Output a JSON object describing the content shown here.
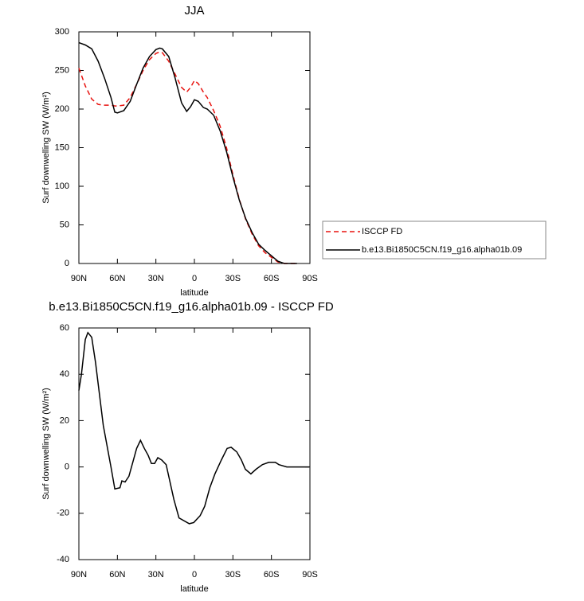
{
  "chart_data": [
    {
      "type": "line",
      "title": "JJA",
      "xlabel": "latitude",
      "ylabel": "Surf downwelling SW (W/m²)",
      "xlim": [
        90,
        -90
      ],
      "xticks": [
        {
          "value": 90,
          "label": "90N"
        },
        {
          "value": 60,
          "label": "60N"
        },
        {
          "value": 30,
          "label": "30N"
        },
        0,
        {
          "value": -30,
          "label": "30S"
        },
        {
          "value": -60,
          "label": "60S"
        },
        {
          "value": -90,
          "label": "90S"
        }
      ],
      "ylim": [
        0,
        300
      ],
      "yticks": [
        0,
        50,
        100,
        150,
        200,
        250,
        300
      ],
      "x": [
        90,
        85,
        80,
        75,
        70,
        65,
        62,
        60,
        55,
        50,
        45,
        40,
        35,
        30,
        27,
        25,
        20,
        15,
        10,
        6,
        3,
        0,
        -3,
        -7,
        -10,
        -15,
        -20,
        -25,
        -30,
        -35,
        -40,
        -45,
        -50,
        -55,
        -60,
        -65,
        -70,
        -75,
        -80
      ],
      "series": [
        {
          "name": "ISCCP FD",
          "color": "#e8120e",
          "dashed": true,
          "values": [
            253,
            230,
            213,
            206,
            205,
            205,
            204,
            204,
            205,
            215,
            232,
            250,
            264,
            272,
            274,
            273,
            262,
            245,
            228,
            222,
            228,
            237,
            233,
            222,
            215,
            198,
            178,
            150,
            115,
            83,
            57,
            38,
            23,
            14,
            8,
            2,
            0,
            0,
            0
          ]
        },
        {
          "name": "b.e13.Bi1850C5CN.f19_g16.alpha01b.09",
          "color": "#000000",
          "dashed": false,
          "values": [
            286,
            283,
            278,
            262,
            240,
            215,
            196,
            195,
            198,
            210,
            232,
            253,
            268,
            277,
            279,
            278,
            268,
            240,
            208,
            197,
            203,
            212,
            210,
            202,
            200,
            192,
            172,
            145,
            112,
            82,
            58,
            40,
            25,
            17,
            10,
            3,
            0,
            0,
            0
          ]
        }
      ]
    },
    {
      "type": "line",
      "title": "b.e13.Bi1850C5CN.f19_g16.alpha01b.09 - ISCCP FD",
      "xlabel": "latitude",
      "ylabel": "Surf downwelling SW (W/m²)",
      "xlim": [
        90,
        -90
      ],
      "xticks": [
        {
          "value": 90,
          "label": "90N"
        },
        {
          "value": 60,
          "label": "60N"
        },
        {
          "value": 30,
          "label": "30N"
        },
        0,
        {
          "value": -30,
          "label": "30S"
        },
        {
          "value": -60,
          "label": "60S"
        },
        {
          "value": -90,
          "label": "90S"
        }
      ],
      "ylim": [
        -40,
        60
      ],
      "yticks": [
        -40,
        -20,
        0,
        20,
        40,
        60
      ],
      "x": [
        90,
        88,
        85,
        83,
        80,
        77,
        71,
        65,
        62,
        58,
        56.5,
        54,
        51,
        48.5,
        45,
        42,
        39,
        36,
        33.5,
        31,
        28.5,
        25.5,
        22,
        20,
        16,
        12,
        4,
        0.5,
        -4.5,
        -8,
        -12,
        -16,
        -21,
        -25.5,
        -28.6,
        -33,
        -36.6,
        -39.7,
        -44,
        -48,
        -53,
        -58,
        -63,
        -65.8,
        -72,
        -89.5
      ],
      "color": "#000000",
      "values": [
        33,
        40,
        55,
        58,
        56,
        45,
        18,
        0,
        -9.5,
        -9,
        -6,
        -6.5,
        -4,
        1,
        8,
        11.5,
        8,
        5,
        1.5,
        1.5,
        4,
        3,
        1,
        -4,
        -14,
        -22,
        -24.5,
        -24,
        -21,
        -17,
        -9,
        -3,
        3,
        8,
        8.5,
        6.5,
        3,
        -1,
        -3,
        -1,
        1,
        2,
        2,
        1,
        0,
        0
      ]
    }
  ]
}
